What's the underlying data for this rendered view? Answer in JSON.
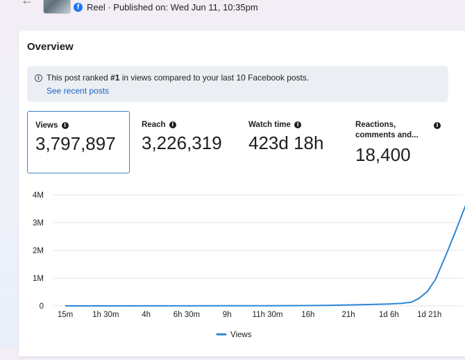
{
  "header": {
    "back_icon": "back-arrow-icon",
    "post_meta": "Reel · Published on: Wed Jun 11, 10:35pm"
  },
  "overview": {
    "title": "Overview",
    "notice": {
      "text_before": "This post ranked ",
      "rank": "#1",
      "text_after": " in views compared to your last 10 Facebook posts.",
      "link": "See recent posts"
    },
    "metrics": [
      {
        "label": "Views",
        "value": "3,797,897",
        "selected": true
      },
      {
        "label": "Reach",
        "value": "3,226,319",
        "selected": false
      },
      {
        "label": "Watch time",
        "value": "423d 18h",
        "selected": false
      },
      {
        "label_line1": "Reactions,",
        "label_line2": "comments and...",
        "value": "18,400",
        "selected": false
      }
    ]
  },
  "colors": {
    "line": "#2d86d4",
    "accent": "#1a65c9",
    "grid": "#e4e6eb"
  },
  "chart_data": {
    "type": "line",
    "y_tick_labels": [
      "0",
      "1M",
      "2M",
      "3M",
      "4M"
    ],
    "x_tick_labels": [
      "15m",
      "1h 30m",
      "4h",
      "6h 30m",
      "9h",
      "11h 30m",
      "16h",
      "21h",
      "1d 6h",
      "1d 21h"
    ],
    "ylim": [
      0,
      4000000
    ],
    "legend": {
      "label": "Views",
      "placement": "bottom-center"
    },
    "series": [
      {
        "name": "Views",
        "points": [
          [
            0,
            0
          ],
          [
            1,
            1000
          ],
          [
            2,
            2000
          ],
          [
            3,
            3000
          ],
          [
            4,
            5000
          ],
          [
            5,
            8000
          ],
          [
            6,
            12000
          ],
          [
            6.5,
            20000
          ],
          [
            7,
            35000
          ],
          [
            7.5,
            50000
          ],
          [
            8,
            70000
          ],
          [
            8.3,
            90000
          ],
          [
            8.55,
            130000
          ],
          [
            8.75,
            280000
          ],
          [
            8.95,
            520000
          ],
          [
            9.15,
            950000
          ],
          [
            9.4,
            1800000
          ],
          [
            9.65,
            2700000
          ],
          [
            9.9,
            3650000
          ]
        ]
      }
    ]
  }
}
